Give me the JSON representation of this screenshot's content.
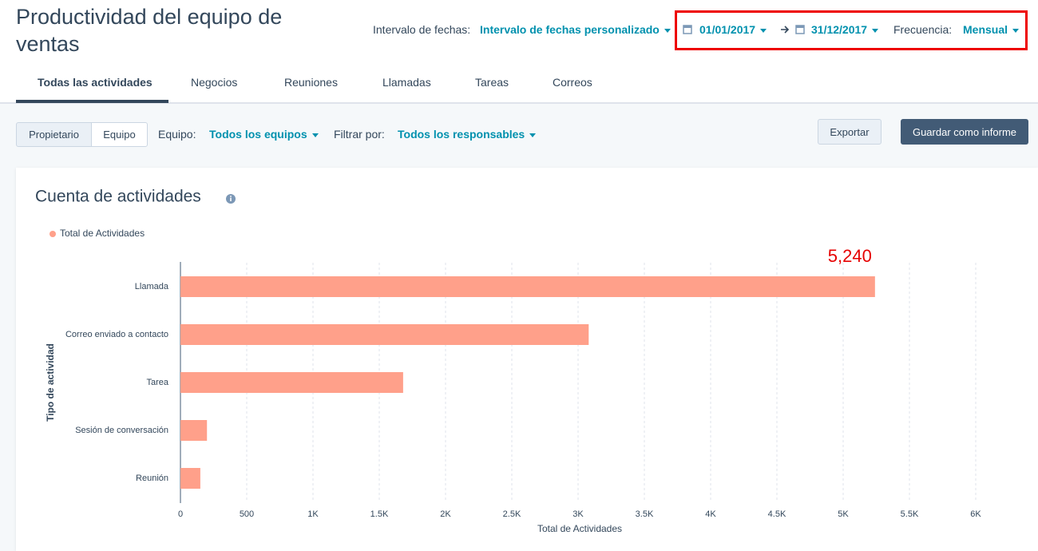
{
  "header": {
    "title": "Productividad del equipo de ventas",
    "date_range_label": "Intervalo de fechas:",
    "date_range_value": "Intervalo de fechas personalizado",
    "start_date": "01/01/2017",
    "end_date": "31/12/2017",
    "frequency_label": "Frecuencia:",
    "frequency_value": "Mensual"
  },
  "tabs": [
    "Todas las actividades",
    "Negocios",
    "Reuniones",
    "Llamadas",
    "Tareas",
    "Correos"
  ],
  "toolbar": {
    "toggle": [
      "Propietario",
      "Equipo"
    ],
    "team_label": "Equipo:",
    "team_value": "Todos los equipos",
    "filter_label": "Filtrar por:",
    "filter_value": "Todos los responsables",
    "export": "Exportar",
    "save": "Guardar como informe"
  },
  "chart_data": {
    "type": "bar",
    "orientation": "horizontal",
    "title": "Cuenta de actividades",
    "x_label": "Total de Actividades",
    "y_label": "Tipo de actividad",
    "categories": [
      "Llamada",
      "Correo enviado a contacto",
      "Tarea",
      "Sesión de conversación",
      "Reunión"
    ],
    "series": [
      {
        "name": "Total de Actividades",
        "color": "#ffa08a",
        "values": [
          5240,
          3080,
          1680,
          200,
          150
        ],
        "value_labels": [
          "5,240",
          null,
          null,
          null,
          null
        ]
      }
    ],
    "xlim": [
      0,
      6000
    ],
    "xticks": [
      0,
      500,
      {
        "value": 1000,
        "label": "1K"
      },
      {
        "value": 1500,
        "label": "1.5K"
      },
      {
        "value": 2000,
        "label": "2K"
      },
      {
        "value": 2500,
        "label": "2.5K"
      },
      {
        "value": 3000,
        "label": "3K"
      },
      {
        "value": 3500,
        "label": "3.5K"
      },
      {
        "value": 4000,
        "label": "4K"
      },
      {
        "value": 4500,
        "label": "4.5K"
      },
      {
        "value": 5000,
        "label": "5K"
      },
      {
        "value": 5500,
        "label": "5.5K"
      },
      {
        "value": 6000,
        "label": "6K"
      }
    ],
    "grid": true,
    "legend": "top-left"
  }
}
